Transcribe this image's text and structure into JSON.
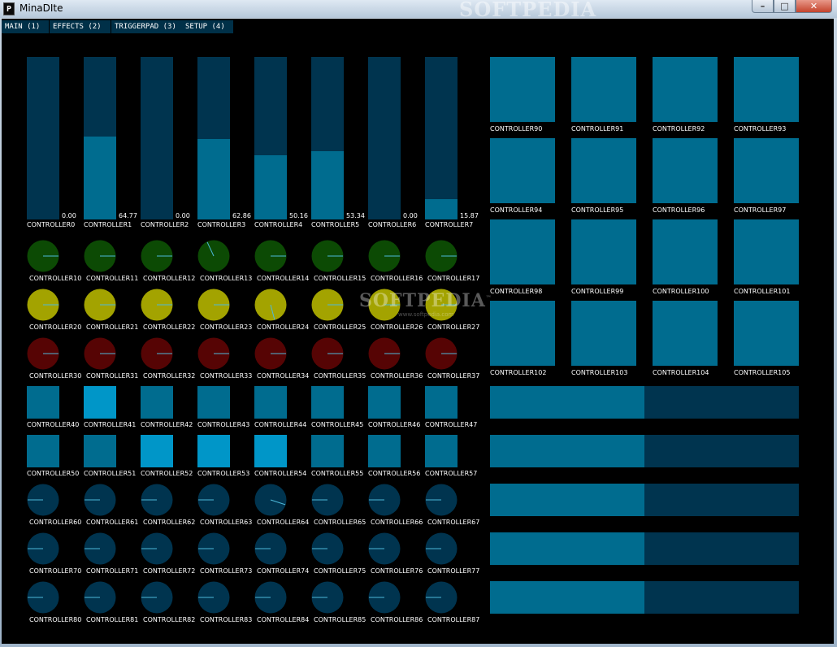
{
  "window": {
    "title": "MinaDIte",
    "app_icon_glyph": "P",
    "watermark_top": "SOFTPEDIA",
    "controls": {
      "minimize": "–",
      "maximize": "□",
      "close": "✕"
    }
  },
  "watermark": {
    "text": "SOFTPEDIA",
    "tm": "™",
    "sub": "www.softpedia.com"
  },
  "tabs": [
    {
      "label": "MAIN (1)",
      "active": true
    },
    {
      "label": "EFFECTS (2)",
      "active": false
    },
    {
      "label": "TRIGGERPAD (3)",
      "active": false
    },
    {
      "label": "SETUP (4)",
      "active": false
    }
  ],
  "colors": {
    "track": "#00344f",
    "fill": "#006c8f",
    "active": "#0096c8",
    "knob_row_1": "#0c4a04",
    "knob_row_2": "#a3a300",
    "knob_row_3": "#560404",
    "knob_rows_4_6": "#00344f",
    "indicator": "#4db8d8"
  },
  "sliders": [
    {
      "label": "CONTROLLER0",
      "value": "0.00",
      "level": 0.0
    },
    {
      "label": "CONTROLLER1",
      "value": "64.77",
      "level": 0.51
    },
    {
      "label": "CONTROLLER2",
      "value": "0.00",
      "level": 0.0
    },
    {
      "label": "CONTROLLER3",
      "value": "62.86",
      "level": 0.495
    },
    {
      "label": "CONTROLLER4",
      "value": "50.16",
      "level": 0.395
    },
    {
      "label": "CONTROLLER5",
      "value": "53.34",
      "level": 0.42
    },
    {
      "label": "CONTROLLER6",
      "value": "0.00",
      "level": 0.0
    },
    {
      "label": "CONTROLLER7",
      "value": "15.87",
      "level": 0.125
    }
  ],
  "knob_rows": [
    {
      "color_key": "knob_row_1",
      "knobs": [
        {
          "label": "CONTROLLER10",
          "angle": 0
        },
        {
          "label": "CONTROLLER11",
          "angle": 0
        },
        {
          "label": "CONTROLLER12",
          "angle": 0
        },
        {
          "label": "CONTROLLER13",
          "angle": -115
        },
        {
          "label": "CONTROLLER14",
          "angle": 0
        },
        {
          "label": "CONTROLLER15",
          "angle": 0
        },
        {
          "label": "CONTROLLER16",
          "angle": 0
        },
        {
          "label": "CONTROLLER17",
          "angle": 0
        }
      ]
    },
    {
      "color_key": "knob_row_2",
      "knobs": [
        {
          "label": "CONTROLLER20",
          "angle": 0
        },
        {
          "label": "CONTROLLER21",
          "angle": 0
        },
        {
          "label": "CONTROLLER22",
          "angle": 0
        },
        {
          "label": "CONTROLLER23",
          "angle": 0
        },
        {
          "label": "CONTROLLER24",
          "angle": 75
        },
        {
          "label": "CONTROLLER25",
          "angle": 0
        },
        {
          "label": "CONTROLLER26",
          "angle": 0
        },
        {
          "label": "CONTROLLER27",
          "angle": 0
        }
      ]
    },
    {
      "color_key": "knob_row_3",
      "knobs": [
        {
          "label": "CONTROLLER30",
          "angle": 0
        },
        {
          "label": "CONTROLLER31",
          "angle": 0
        },
        {
          "label": "CONTROLLER32",
          "angle": 0
        },
        {
          "label": "CONTROLLER33",
          "angle": 0
        },
        {
          "label": "CONTROLLER34",
          "angle": 0
        },
        {
          "label": "CONTROLLER35",
          "angle": 0
        },
        {
          "label": "CONTROLLER36",
          "angle": 0
        },
        {
          "label": "CONTROLLER37",
          "angle": 0
        }
      ]
    }
  ],
  "square_rows": [
    [
      {
        "label": "CONTROLLER40",
        "on": false
      },
      {
        "label": "CONTROLLER41",
        "on": true
      },
      {
        "label": "CONTROLLER42",
        "on": false
      },
      {
        "label": "CONTROLLER43",
        "on": false
      },
      {
        "label": "CONTROLLER44",
        "on": false
      },
      {
        "label": "CONTROLLER45",
        "on": false
      },
      {
        "label": "CONTROLLER46",
        "on": false
      },
      {
        "label": "CONTROLLER47",
        "on": false
      }
    ],
    [
      {
        "label": "CONTROLLER50",
        "on": false
      },
      {
        "label": "CONTROLLER51",
        "on": false
      },
      {
        "label": "CONTROLLER52",
        "on": true
      },
      {
        "label": "CONTROLLER53",
        "on": true
      },
      {
        "label": "CONTROLLER54",
        "on": true
      },
      {
        "label": "CONTROLLER55",
        "on": false
      },
      {
        "label": "CONTROLLER56",
        "on": false
      },
      {
        "label": "CONTROLLER57",
        "on": false
      }
    ]
  ],
  "dark_knob_rows": [
    [
      {
        "label": "CONTROLLER60",
        "angle": 180
      },
      {
        "label": "CONTROLLER61",
        "angle": 180
      },
      {
        "label": "CONTROLLER62",
        "angle": 180
      },
      {
        "label": "CONTROLLER63",
        "angle": 180
      },
      {
        "label": "CONTROLLER64",
        "angle": 18
      },
      {
        "label": "CONTROLLER65",
        "angle": 180
      },
      {
        "label": "CONTROLLER66",
        "angle": 180
      },
      {
        "label": "CONTROLLER67",
        "angle": 180
      }
    ],
    [
      {
        "label": "CONTROLLER70",
        "angle": 180
      },
      {
        "label": "CONTROLLER71",
        "angle": 180
      },
      {
        "label": "CONTROLLER72",
        "angle": 180
      },
      {
        "label": "CONTROLLER73",
        "angle": 180
      },
      {
        "label": "CONTROLLER74",
        "angle": 180
      },
      {
        "label": "CONTROLLER75",
        "angle": 180
      },
      {
        "label": "CONTROLLER76",
        "angle": 180
      },
      {
        "label": "CONTROLLER77",
        "angle": 180
      }
    ],
    [
      {
        "label": "CONTROLLER80",
        "angle": 180
      },
      {
        "label": "CONTROLLER81",
        "angle": 180
      },
      {
        "label": "CONTROLLER82",
        "angle": 180
      },
      {
        "label": "CONTROLLER83",
        "angle": 180
      },
      {
        "label": "CONTROLLER84",
        "angle": 180
      },
      {
        "label": "CONTROLLER85",
        "angle": 180
      },
      {
        "label": "CONTROLLER86",
        "angle": 180
      },
      {
        "label": "CONTROLLER87",
        "angle": 180
      }
    ]
  ],
  "pads": [
    "CONTROLLER90",
    "CONTROLLER91",
    "CONTROLLER92",
    "CONTROLLER93",
    "CONTROLLER94",
    "CONTROLLER95",
    "CONTROLLER96",
    "CONTROLLER97",
    "CONTROLLER98",
    "CONTROLLER99",
    "CONTROLLER100",
    "CONTROLLER101",
    "CONTROLLER102",
    "CONTROLLER103",
    "CONTROLLER104",
    "CONTROLLER105"
  ],
  "hbars": [
    {
      "level": 0.5
    },
    {
      "level": 0.5
    },
    {
      "level": 0.5
    },
    {
      "level": 0.5
    },
    {
      "level": 0.5
    }
  ]
}
